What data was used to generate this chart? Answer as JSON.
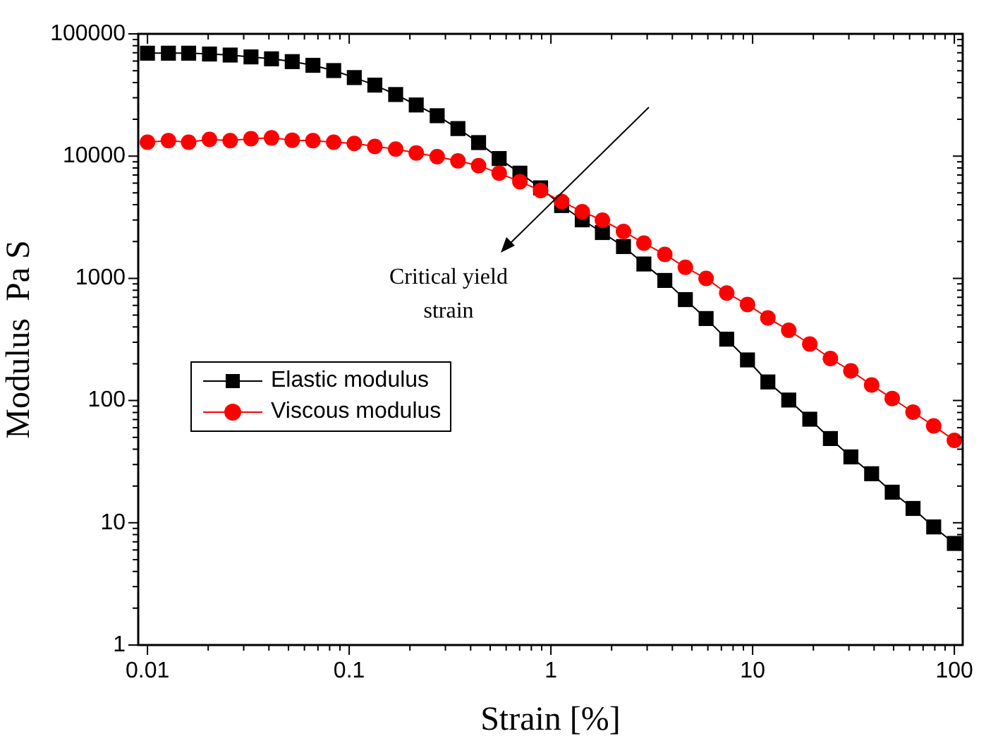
{
  "chart_data": {
    "type": "line",
    "xlabel": "Strain [%]",
    "ylabel": "Modulus  Pa S",
    "log": "xy",
    "xlim": [
      0.009,
      110
    ],
    "ylim": [
      1,
      100000
    ],
    "xticks": [
      {
        "value": 0.01,
        "label": "0.01"
      },
      {
        "value": 0.02,
        "label": null
      },
      {
        "value": 0.03,
        "label": null
      },
      {
        "value": 0.04,
        "label": null
      },
      {
        "value": 0.05,
        "label": null
      },
      {
        "value": 0.06,
        "label": null
      },
      {
        "value": 0.07,
        "label": null
      },
      {
        "value": 0.08,
        "label": null
      },
      {
        "value": 0.09,
        "label": null
      },
      {
        "value": 0.1,
        "label": "0.1"
      },
      {
        "value": 0.2,
        "label": null
      },
      {
        "value": 0.3,
        "label": null
      },
      {
        "value": 0.4,
        "label": null
      },
      {
        "value": 0.5,
        "label": null
      },
      {
        "value": 0.6,
        "label": null
      },
      {
        "value": 0.7,
        "label": null
      },
      {
        "value": 0.8,
        "label": null
      },
      {
        "value": 0.9,
        "label": null
      },
      1,
      {
        "value": 2,
        "label": null
      },
      {
        "value": 3,
        "label": null
      },
      {
        "value": 4,
        "label": null
      },
      {
        "value": 5,
        "label": null
      },
      {
        "value": 6,
        "label": null
      },
      {
        "value": 7,
        "label": null
      },
      {
        "value": 8,
        "label": null
      },
      {
        "value": 9,
        "label": null
      },
      10,
      {
        "value": 20,
        "label": null
      },
      {
        "value": 30,
        "label": null
      },
      {
        "value": 40,
        "label": null
      },
      {
        "value": 50,
        "label": null
      },
      {
        "value": 60,
        "label": null
      },
      {
        "value": 70,
        "label": null
      },
      {
        "value": 80,
        "label": null
      },
      {
        "value": 90,
        "label": null
      },
      100
    ],
    "yticks": [
      1,
      {
        "value": 2,
        "label": null
      },
      {
        "value": 3,
        "label": null
      },
      {
        "value": 4,
        "label": null
      },
      {
        "value": 5,
        "label": null
      },
      {
        "value": 6,
        "label": null
      },
      {
        "value": 7,
        "label": null
      },
      {
        "value": 8,
        "label": null
      },
      {
        "value": 9,
        "label": null
      },
      10,
      {
        "value": 20,
        "label": null
      },
      {
        "value": 30,
        "label": null
      },
      {
        "value": 40,
        "label": null
      },
      {
        "value": 50,
        "label": null
      },
      {
        "value": 60,
        "label": null
      },
      {
        "value": 70,
        "label": null
      },
      {
        "value": 80,
        "label": null
      },
      {
        "value": 90,
        "label": null
      },
      100,
      {
        "value": 200,
        "label": null
      },
      {
        "value": 300,
        "label": null
      },
      {
        "value": 400,
        "label": null
      },
      {
        "value": 500,
        "label": null
      },
      {
        "value": 600,
        "label": null
      },
      {
        "value": 700,
        "label": null
      },
      {
        "value": 800,
        "label": null
      },
      {
        "value": 900,
        "label": null
      },
      1000,
      {
        "value": 2000,
        "label": null
      },
      {
        "value": 3000,
        "label": null
      },
      {
        "value": 4000,
        "label": null
      },
      {
        "value": 5000,
        "label": null
      },
      {
        "value": 6000,
        "label": null
      },
      {
        "value": 7000,
        "label": null
      },
      {
        "value": 8000,
        "label": null
      },
      {
        "value": 9000,
        "label": null
      },
      10000,
      {
        "value": 20000,
        "label": null
      },
      {
        "value": 30000,
        "label": null
      },
      {
        "value": 40000,
        "label": null
      },
      {
        "value": 50000,
        "label": null
      },
      {
        "value": 60000,
        "label": null
      },
      {
        "value": 70000,
        "label": null
      },
      {
        "value": 80000,
        "label": null
      },
      {
        "value": 90000,
        "label": null
      },
      100000
    ],
    "grid": false,
    "legend": "center left",
    "line_style": "solid",
    "x": [
      0.01,
      0.0127,
      0.016,
      0.0203,
      0.0257,
      0.0326,
      0.0412,
      0.0522,
      0.0661,
      0.0838,
      0.106,
      0.134,
      0.17,
      0.215,
      0.273,
      0.346,
      0.438,
      0.554,
      0.702,
      0.889,
      1.13,
      1.43,
      1.8,
      2.29,
      2.89,
      3.67,
      4.64,
      5.88,
      7.44,
      9.43,
      11.9,
      15.1,
      19.2,
      24.3,
      30.7,
      38.9,
      49.2,
      62.4,
      79,
      100
    ],
    "series": [
      {
        "name": "Elastic modulus",
        "color": "#000000",
        "marker": "square",
        "values": [
          69500,
          69500,
          69500,
          68400,
          67100,
          64800,
          62500,
          59300,
          55300,
          50100,
          43900,
          38100,
          31900,
          26200,
          21400,
          16800,
          12900,
          9550,
          7250,
          5500,
          3940,
          3010,
          2370,
          1820,
          1310,
          961,
          670,
          469,
          318,
          215,
          142,
          101,
          70.4,
          48.9,
          34.6,
          25.2,
          17.8,
          13.1,
          9.25,
          6.78
        ]
      },
      {
        "name": "Viscous modulus",
        "color": "#ff0000",
        "marker": "circle",
        "values": [
          13000,
          13400,
          13000,
          13700,
          13400,
          13900,
          14100,
          13500,
          13400,
          13000,
          12700,
          12000,
          11400,
          10600,
          9890,
          9130,
          8360,
          7250,
          6180,
          5230,
          4260,
          3510,
          2990,
          2420,
          1940,
          1570,
          1230,
          998,
          757,
          611,
          474,
          376,
          290,
          221,
          175,
          134,
          104,
          80.4,
          62.1,
          47.2
        ]
      }
    ],
    "annotations": [
      "Critical yield strain"
    ]
  }
}
